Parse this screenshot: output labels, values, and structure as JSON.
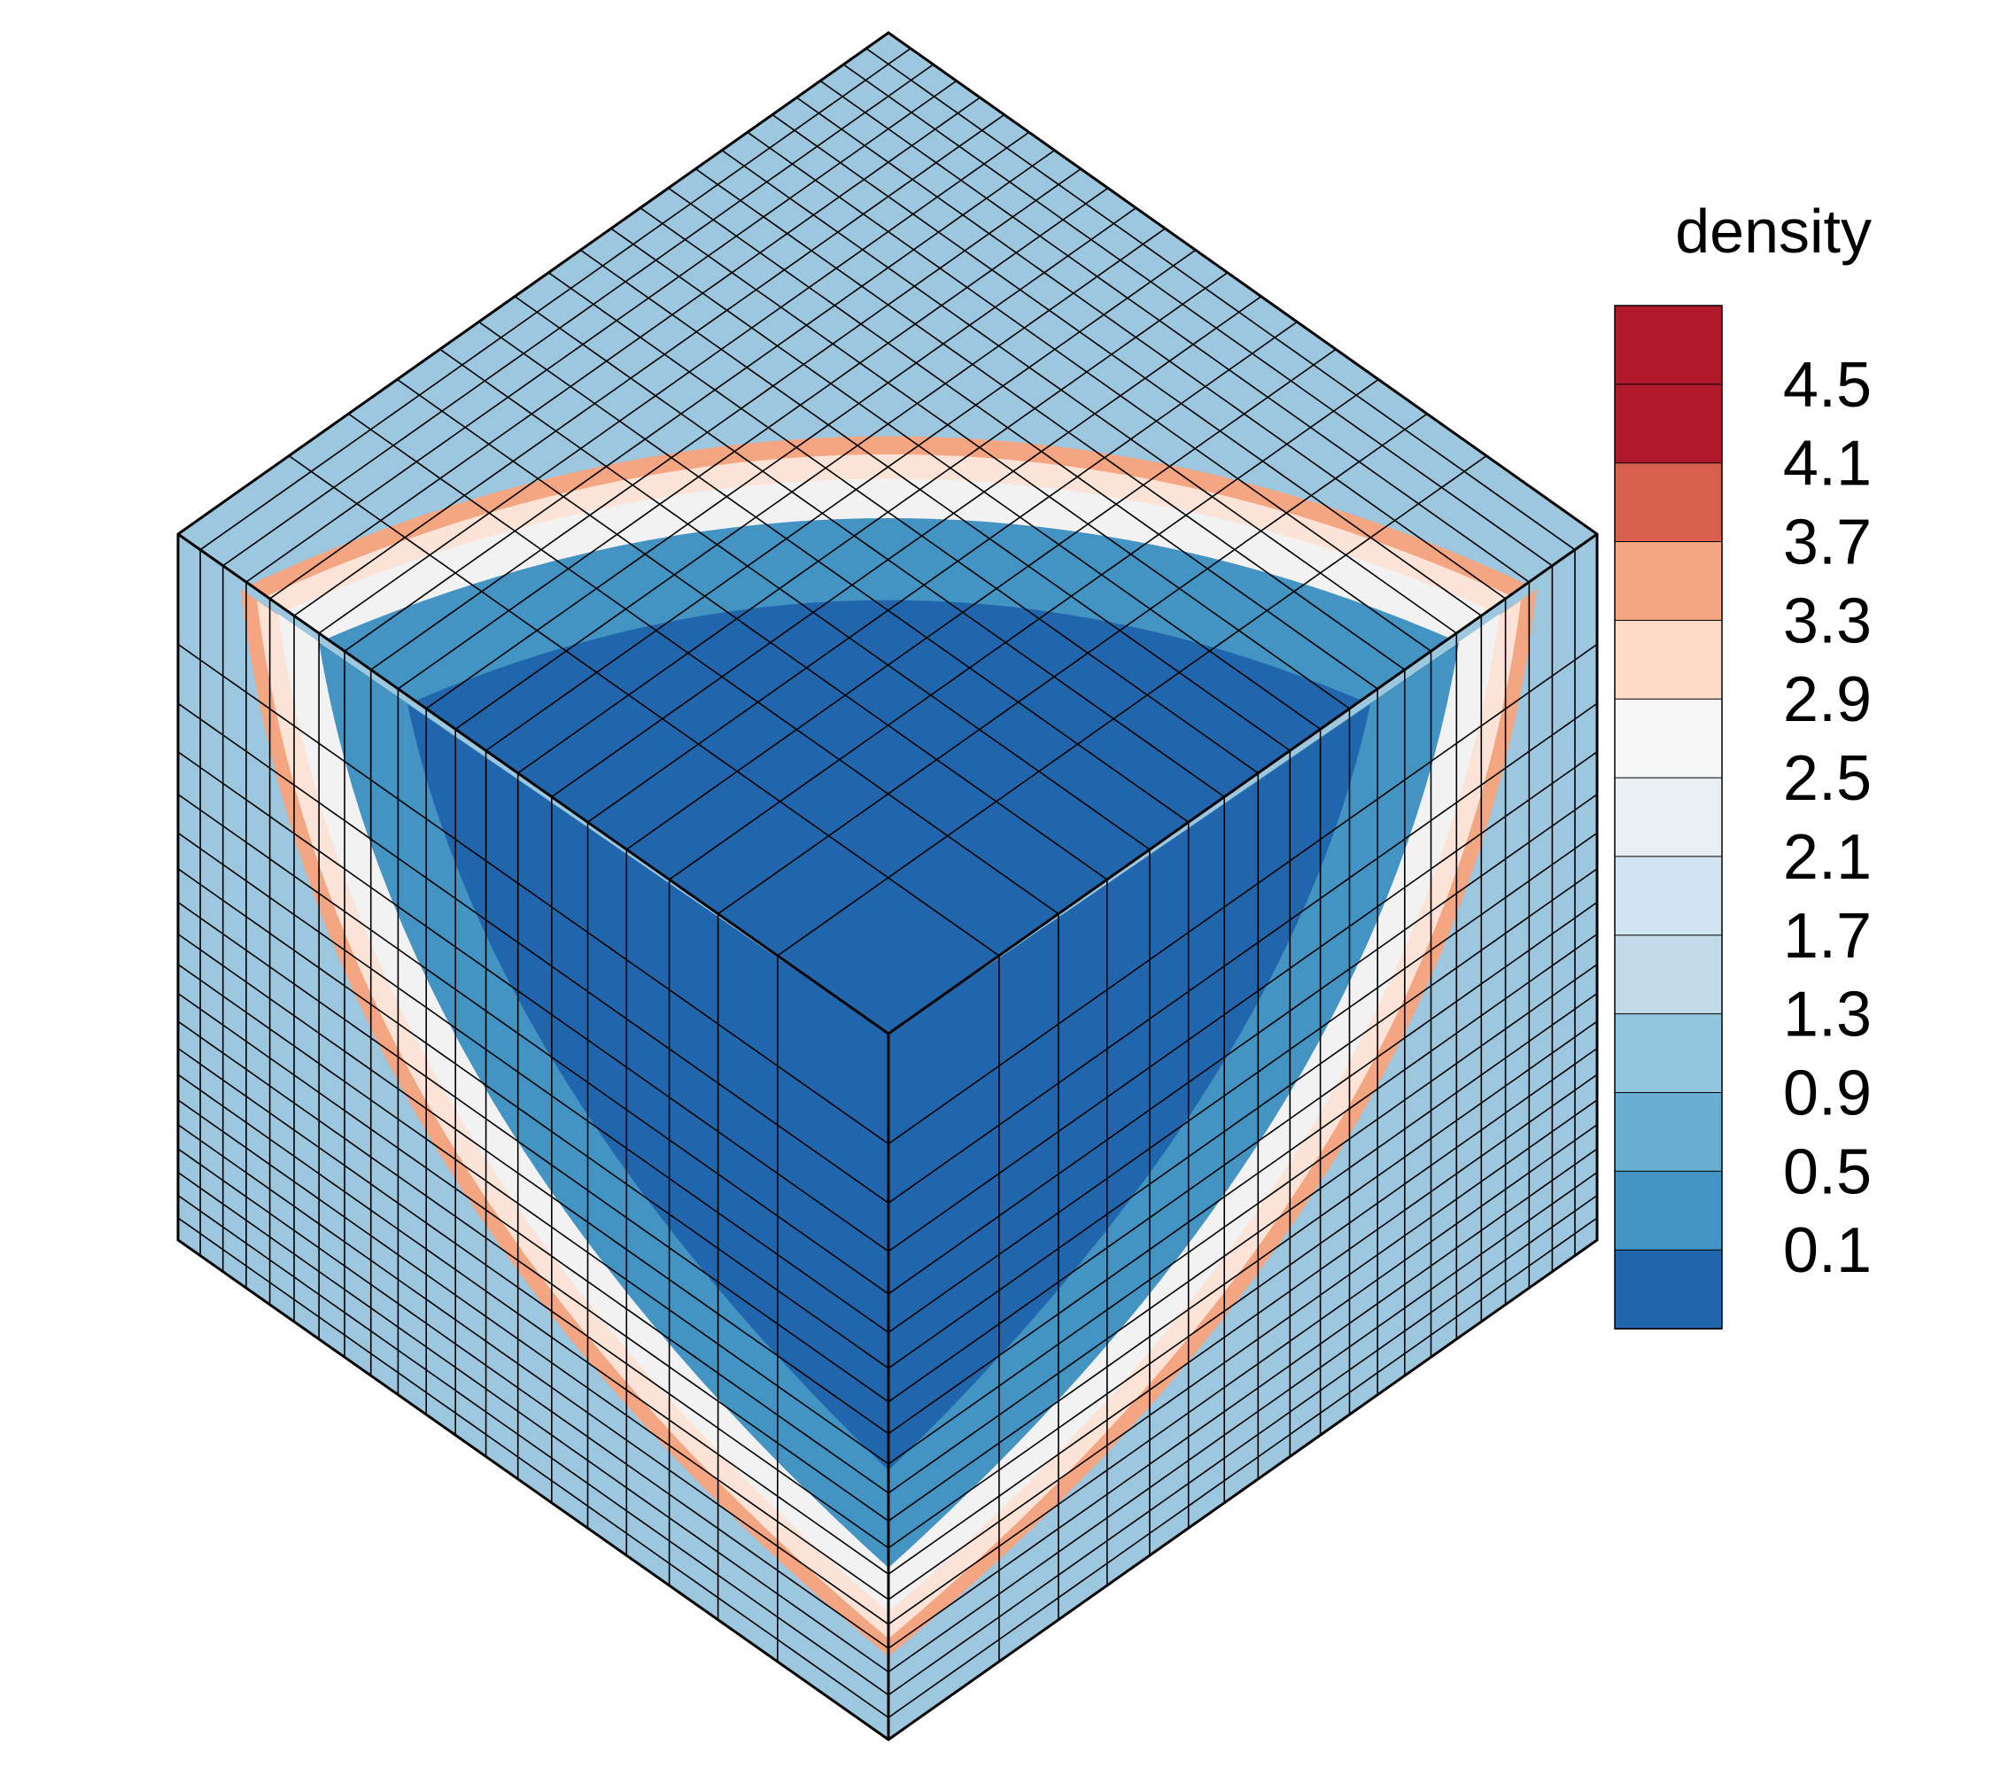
{
  "legend": {
    "title": "density",
    "levels": [
      "4.5",
      "4.1",
      "3.7",
      "3.3",
      "2.9",
      "2.5",
      "2.1",
      "1.7",
      "1.3",
      "0.9",
      "0.5",
      "0.1"
    ],
    "colors": [
      "#b2182b",
      "#d6604d",
      "#f4a582",
      "#fddbc7",
      "#f7f7f7",
      "#e8eef4",
      "#d1e5f0",
      "#c2d9e9",
      "#92c5de",
      "#6aaed4",
      "#4393c3",
      "#2166ac"
    ]
  },
  "mesh": {
    "cells_per_edge": 20,
    "cavity_cells": 10,
    "line_color": "#000000",
    "colors": {
      "outer": "#9dc6df",
      "cavity": "#2166ac",
      "halo": "#4393c3",
      "ring_peak": "#f4a582",
      "ring_light": "#fbe3d7",
      "ring_white": "#f2f2f2"
    }
  }
}
